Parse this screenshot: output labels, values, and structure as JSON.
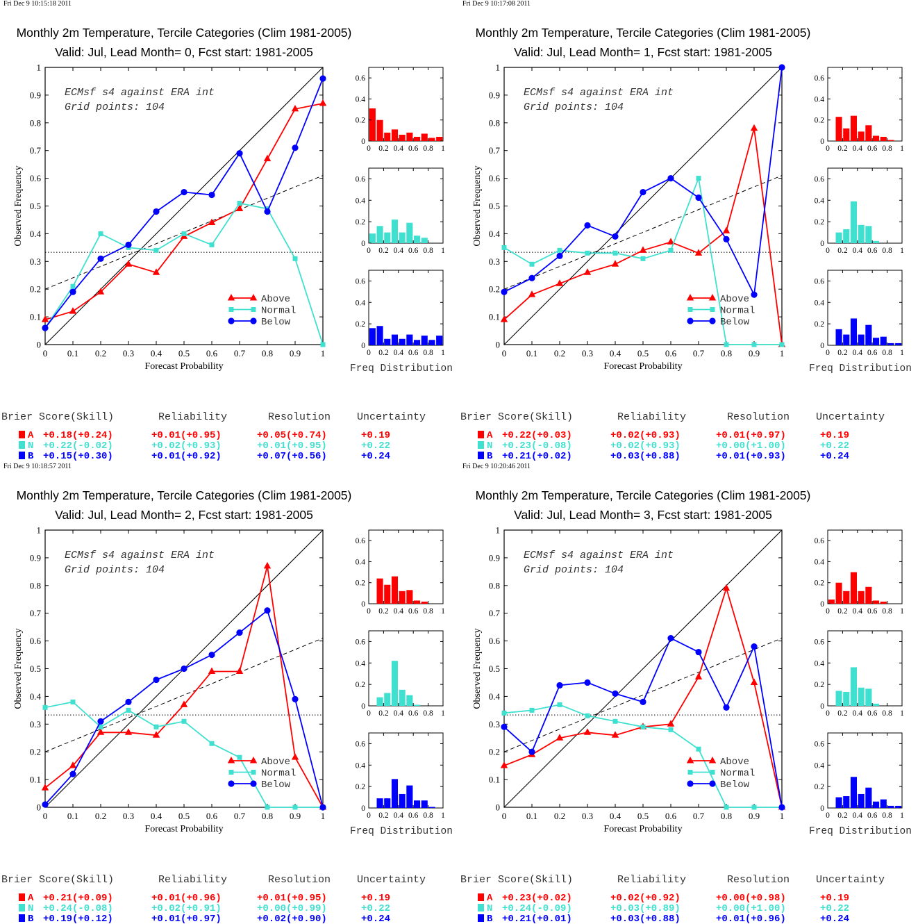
{
  "colors": {
    "above": "#ff0000",
    "normal": "#40e0d0",
    "below": "#0000ff",
    "diagonal": "#000000"
  },
  "common": {
    "xlabel": "Forecast Probability",
    "ylabel": "Observed Frequency",
    "freq_label": "Freq Distribution",
    "annotation_line1": "ECMsf s4 against ERA int",
    "annotation_line2": "Grid points:  104",
    "legend": [
      "Above",
      "Normal",
      "Below"
    ],
    "score_headers": [
      "Brier Score(Skill)",
      "Reliability",
      "Resolution",
      "Uncertainty"
    ],
    "score_row_labels": [
      "A",
      "N",
      "B"
    ],
    "main_xticks": [
      "0",
      "0.1",
      "0.2",
      "0.3",
      "0.4",
      "0.5",
      "0.6",
      "0.7",
      "0.8",
      "0.9",
      "1"
    ],
    "main_yticks": [
      "0",
      "0.1",
      "0.2",
      "0.3",
      "0.4",
      "0.5",
      "0.6",
      "0.7",
      "0.8",
      "0.9",
      "1"
    ],
    "hist_xticks": [
      "0",
      "0.2",
      "0.4",
      "0.6",
      "0.8",
      "1"
    ],
    "hist_yticks": [
      "0",
      "0.2",
      "0.4",
      "0.6"
    ]
  },
  "chart_data": [
    {
      "type": "line",
      "timestamp": "Fri Dec  9 10:15:18 2011",
      "title": "Monthly 2m Temperature, Tercile Categories (Clim 1981-2005)",
      "subtitle": "Valid: Jul, Lead Month= 0, Fcst start: 1981-2005",
      "xlim": [
        0,
        1
      ],
      "ylim": [
        0,
        1
      ],
      "x": [
        0,
        0.1,
        0.2,
        0.3,
        0.4,
        0.5,
        0.6,
        0.7,
        0.8,
        0.9,
        1
      ],
      "series": [
        {
          "name": "Above",
          "values": [
            0.09,
            0.12,
            0.19,
            0.29,
            0.26,
            0.39,
            0.44,
            0.49,
            0.67,
            0.85,
            0.87
          ]
        },
        {
          "name": "Normal",
          "values": [
            0.06,
            0.21,
            0.4,
            0.35,
            0.34,
            0.4,
            0.36,
            0.51,
            0.49,
            0.31,
            0.0
          ]
        },
        {
          "name": "Below",
          "values": [
            0.06,
            0.19,
            0.31,
            0.36,
            0.48,
            0.55,
            0.54,
            0.69,
            0.48,
            0.71,
            0.96
          ]
        }
      ],
      "climatology": 0.333,
      "regression": [
        0.2,
        0.61
      ],
      "histograms": {
        "above": [
          0.31,
          0.2,
          0.08,
          0.11,
          0.06,
          0.08,
          0.04,
          0.07,
          0.03,
          0.04
        ],
        "normal": [
          0.09,
          0.16,
          0.1,
          0.22,
          0.1,
          0.19,
          0.07,
          0.05,
          0.0,
          0.0
        ],
        "below": [
          0.16,
          0.18,
          0.06,
          0.1,
          0.06,
          0.1,
          0.05,
          0.09,
          0.05,
          0.09
        ]
      },
      "scores": {
        "A": [
          "+0.18(+0.24)",
          "+0.01(+0.95)",
          "+0.05(+0.74)",
          "+0.19"
        ],
        "N": [
          "+0.22(-0.02)",
          "+0.02(+0.93)",
          "+0.01(+0.95)",
          "+0.22"
        ],
        "B": [
          "+0.15(+0.30)",
          "+0.01(+0.92)",
          "+0.07(+0.56)",
          "+0.24"
        ]
      }
    },
    {
      "type": "line",
      "timestamp": "Fri Dec  9 10:17:08 2011",
      "title": "Monthly 2m Temperature, Tercile Categories (Clim 1981-2005)",
      "subtitle": "Valid: Jul, Lead Month= 1, Fcst start: 1981-2005",
      "xlim": [
        0,
        1
      ],
      "ylim": [
        0,
        1
      ],
      "x": [
        0,
        0.1,
        0.2,
        0.3,
        0.4,
        0.5,
        0.6,
        0.7,
        0.8,
        0.9,
        1
      ],
      "series": [
        {
          "name": "Above",
          "values": [
            0.09,
            0.18,
            0.22,
            0.26,
            0.29,
            0.34,
            0.37,
            0.33,
            0.41,
            0.78,
            0.0
          ]
        },
        {
          "name": "Normal",
          "values": [
            0.35,
            0.29,
            0.34,
            0.33,
            0.33,
            0.31,
            0.34,
            0.6,
            0.0,
            0.0,
            0.0
          ]
        },
        {
          "name": "Below",
          "values": [
            0.19,
            0.24,
            0.32,
            0.43,
            0.39,
            0.55,
            0.6,
            0.53,
            0.38,
            0.18,
            1.0
          ]
        }
      ],
      "climatology": 0.333,
      "regression": [
        0.2,
        0.61
      ],
      "histograms": {
        "above": [
          0.0,
          0.23,
          0.12,
          0.24,
          0.09,
          0.15,
          0.05,
          0.04,
          0.01,
          0.0
        ],
        "normal": [
          0.0,
          0.1,
          0.13,
          0.39,
          0.17,
          0.16,
          0.02,
          0.0,
          0.0,
          0.0
        ],
        "below": [
          0.0,
          0.15,
          0.1,
          0.25,
          0.1,
          0.19,
          0.07,
          0.08,
          0.02,
          0.02
        ]
      },
      "scores": {
        "A": [
          "+0.22(+0.03)",
          "+0.02(+0.93)",
          "+0.01(+0.97)",
          "+0.19"
        ],
        "N": [
          "+0.23(-0.08)",
          "+0.02(+0.93)",
          "+0.00(+1.00)",
          "+0.22"
        ],
        "B": [
          "+0.21(+0.02)",
          "+0.03(+0.88)",
          "+0.01(+0.93)",
          "+0.24"
        ]
      }
    },
    {
      "type": "line",
      "timestamp": "Fri Dec  9 10:18:57 2011",
      "title": "Monthly 2m Temperature, Tercile Categories (Clim 1981-2005)",
      "subtitle": "Valid: Jul, Lead Month= 2, Fcst start: 1981-2005",
      "xlim": [
        0,
        1
      ],
      "ylim": [
        0,
        1
      ],
      "x": [
        0,
        0.1,
        0.2,
        0.3,
        0.4,
        0.5,
        0.6,
        0.7,
        0.8,
        0.9,
        1
      ],
      "series": [
        {
          "name": "Above",
          "values": [
            0.07,
            0.15,
            0.27,
            0.27,
            0.26,
            0.37,
            0.49,
            0.49,
            0.87,
            0.18,
            0.0
          ]
        },
        {
          "name": "Normal",
          "values": [
            0.36,
            0.38,
            0.29,
            0.35,
            0.29,
            0.31,
            0.23,
            0.18,
            0.0,
            0.0,
            0.0
          ]
        },
        {
          "name": "Below",
          "values": [
            0.01,
            0.12,
            0.31,
            0.38,
            0.46,
            0.5,
            0.55,
            0.63,
            0.71,
            0.39,
            0.0
          ]
        }
      ],
      "climatology": 0.333,
      "regression": [
        0.2,
        0.61
      ],
      "histograms": {
        "above": [
          0.0,
          0.24,
          0.18,
          0.26,
          0.12,
          0.13,
          0.03,
          0.02,
          0.0,
          0.0
        ],
        "normal": [
          0.0,
          0.08,
          0.12,
          0.42,
          0.15,
          0.1,
          0.01,
          0.0,
          0.0,
          0.0
        ],
        "below": [
          0.0,
          0.09,
          0.09,
          0.27,
          0.13,
          0.21,
          0.07,
          0.07,
          0.01,
          0.0
        ]
      },
      "scores": {
        "A": [
          "+0.21(+0.09)",
          "+0.01(+0.96)",
          "+0.01(+0.95)",
          "+0.19"
        ],
        "N": [
          "+0.24(-0.08)",
          "+0.02(+0.91)",
          "+0.00(+0.99)",
          "+0.22"
        ],
        "B": [
          "+0.19(+0.12)",
          "+0.01(+0.97)",
          "+0.02(+0.90)",
          "+0.24"
        ]
      }
    },
    {
      "type": "line",
      "timestamp": "Fri Dec  9 10:20:46 2011",
      "title": "Monthly 2m Temperature, Tercile Categories (Clim 1981-2005)",
      "subtitle": "Valid: Jul, Lead Month= 3, Fcst start: 1981-2005",
      "xlim": [
        0,
        1
      ],
      "ylim": [
        0,
        1
      ],
      "x": [
        0,
        0.1,
        0.2,
        0.3,
        0.4,
        0.5,
        0.6,
        0.7,
        0.8,
        0.9,
        1
      ],
      "series": [
        {
          "name": "Above",
          "values": [
            0.15,
            0.19,
            0.25,
            0.27,
            0.26,
            0.29,
            0.3,
            0.47,
            0.79,
            0.45,
            0.0
          ]
        },
        {
          "name": "Normal",
          "values": [
            0.34,
            0.35,
            0.37,
            0.33,
            0.31,
            0.29,
            0.28,
            0.21,
            0.0,
            0.0,
            0.0
          ]
        },
        {
          "name": "Below",
          "values": [
            0.29,
            0.2,
            0.44,
            0.45,
            0.41,
            0.38,
            0.61,
            0.56,
            0.36,
            0.58,
            0.0
          ]
        }
      ],
      "climatology": 0.333,
      "regression": [
        0.2,
        0.61
      ],
      "histograms": {
        "above": [
          0.04,
          0.2,
          0.12,
          0.3,
          0.12,
          0.16,
          0.03,
          0.02,
          0.0,
          0.0
        ],
        "normal": [
          0.0,
          0.14,
          0.13,
          0.36,
          0.17,
          0.16,
          0.02,
          0.0,
          0.0,
          0.0
        ],
        "below": [
          0.0,
          0.1,
          0.11,
          0.29,
          0.13,
          0.19,
          0.06,
          0.08,
          0.02,
          0.02
        ]
      },
      "scores": {
        "A": [
          "+0.23(+0.02)",
          "+0.02(+0.92)",
          "+0.00(+0.98)",
          "+0.19"
        ],
        "N": [
          "+0.24(-0.09)",
          "+0.03(+0.89)",
          "+0.00(+1.00)",
          "+0.22"
        ],
        "B": [
          "+0.21(+0.01)",
          "+0.03(+0.88)",
          "+0.01(+0.96)",
          "+0.24"
        ]
      }
    }
  ]
}
